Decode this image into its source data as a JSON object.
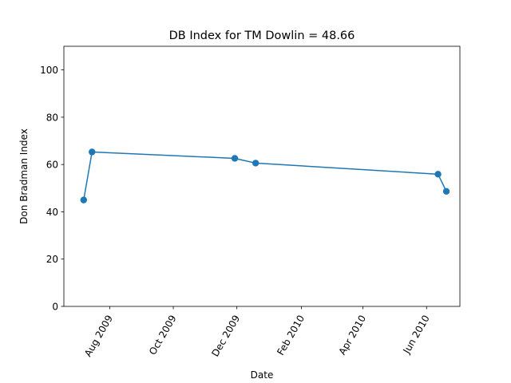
{
  "chart_data": {
    "type": "line",
    "title": "DB Index for TM Dowlin = 48.66",
    "xlabel": "Date",
    "ylabel": "Don Bradman Index",
    "ylim": [
      0,
      110
    ],
    "xlim": [
      "2009-06-18",
      "2010-07-03"
    ],
    "yticks": [
      0,
      20,
      40,
      60,
      80,
      100
    ],
    "xticks": [
      {
        "date": "2009-08-01",
        "label": "Aug 2009"
      },
      {
        "date": "2009-10-01",
        "label": "Oct 2009"
      },
      {
        "date": "2009-12-01",
        "label": "Dec 2009"
      },
      {
        "date": "2010-02-01",
        "label": "Feb 2010"
      },
      {
        "date": "2010-04-01",
        "label": "Apr 2010"
      },
      {
        "date": "2010-06-01",
        "label": "Jun 2010"
      }
    ],
    "grid": false,
    "line_color": "#1f77b4",
    "series": [
      {
        "points": [
          {
            "x": "2009-07-07",
            "y": 45.0
          },
          {
            "x": "2009-07-15",
            "y": 65.3
          },
          {
            "x": "2009-11-29",
            "y": 62.6
          },
          {
            "x": "2009-12-19",
            "y": 60.6
          },
          {
            "x": "2010-06-12",
            "y": 55.9
          },
          {
            "x": "2010-06-20",
            "y": 48.66
          }
        ]
      }
    ]
  }
}
